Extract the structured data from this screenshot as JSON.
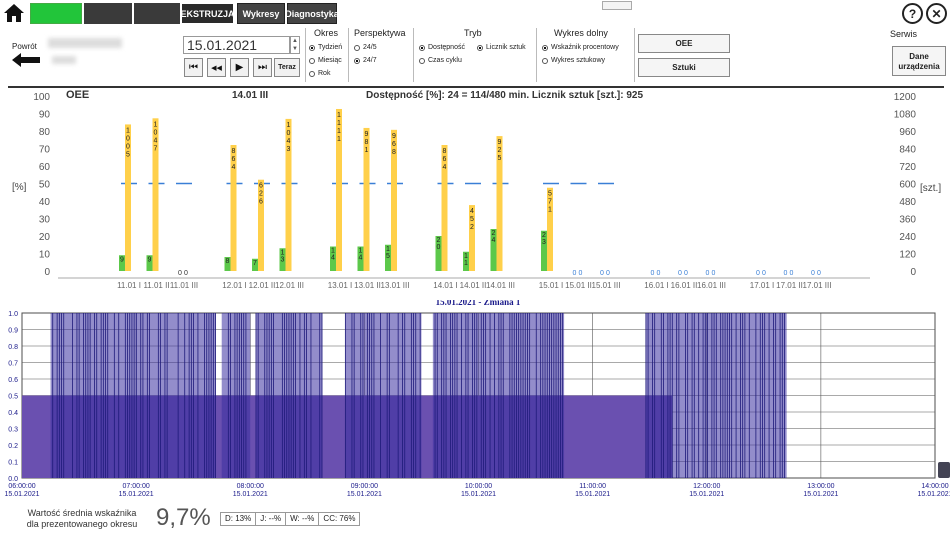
{
  "topbar": {
    "tabs": [
      "EKSTRUZJA",
      "Wykresy",
      "Diagnostyka"
    ],
    "help_label": "?",
    "close_label": "✕",
    "serwis_label": "Serwis"
  },
  "controls": {
    "powrot_label": "Powrót",
    "date_value": "15.01.2021",
    "teraz_label": "Teraz",
    "nav_glyphs": [
      "⏮",
      "◀◀",
      "▶",
      "⏭"
    ],
    "okres": {
      "title": "Okres",
      "options": [
        "Tydzień",
        "Miesiąc",
        "Rok"
      ],
      "selected": 0
    },
    "perspektywa": {
      "title": "Perspektywa",
      "options": [
        "24/5",
        "24/7"
      ],
      "selected": 1
    },
    "tryb": {
      "title": "Tryb",
      "options": [
        "Dostępność",
        "Licznik sztuk",
        "Czas cyklu"
      ],
      "selected": 0
    },
    "wykres_dolny": {
      "title": "Wykres dolny",
      "options": [
        "Wskaźnik procentowy",
        "Wykres sztukowy"
      ],
      "selected": 0
    },
    "oee_button": "OEE",
    "sztuki_button": "Sztuki",
    "dane_button_line1": "Dane",
    "dane_button_line2": "urządzenia"
  },
  "colors": {
    "bar_yellow": "#ffd04a",
    "bar_green": "#5cc84a",
    "line_blue": "#3a7fd6",
    "signal": "#3b2fa0",
    "fill": "#6a50b0"
  },
  "chart_data": [
    {
      "type": "bar",
      "header_left": "OEE",
      "header_date": "14.01 III",
      "header_text": "Dostępność [%]:   24 = 114/480 min.   Licznik sztuk [szt.]: 925",
      "ylabel_left": "[%]",
      "ylabel_right": "[szt.]",
      "y_ticks_left": [
        "100",
        "90",
        "80",
        "70",
        "60",
        "50",
        "40",
        "30",
        "20",
        "10",
        "0"
      ],
      "y_ticks_right": [
        "1200",
        "1080",
        "960",
        "840",
        "720",
        "600",
        "480",
        "360",
        "240",
        "120",
        "0"
      ],
      "ylim_left": [
        0,
        100
      ],
      "ylim_right": [
        0,
        1200
      ],
      "categories": [
        "11.01 I",
        "11.01 II",
        "11.01 III",
        "12.01 I",
        "12.01 II",
        "12.01 III",
        "13.01 I",
        "13.01 II",
        "13.01 III",
        "14.01 I",
        "14.01 II",
        "14.01 III",
        "15.01 I",
        "15.01 II",
        "15.01 III",
        "16.01 I",
        "16.01 II",
        "16.01 III",
        "17.01 I",
        "17.01 II",
        "17.01 III"
      ],
      "series": [
        {
          "name": "Dostępność",
          "values": [
            9,
            9,
            0,
            8,
            7,
            13,
            14,
            14,
            15,
            20,
            11,
            24,
            23,
            0,
            0,
            0,
            0,
            0,
            0,
            0,
            0
          ]
        },
        {
          "name": "Licznik sztuk",
          "values": [
            1005,
            1047,
            0,
            864,
            626,
            1043,
            1111,
            981,
            968,
            864,
            452,
            925,
            571,
            0,
            0,
            0,
            0,
            0,
            0,
            0,
            0
          ]
        }
      ],
      "ref_line": 50
    },
    {
      "type": "area",
      "title": "15.01.2021 - Zmiana 1",
      "y_ticks": [
        "1.0",
        "0.9",
        "0.8",
        "0.7",
        "0.6",
        "0.5",
        "0.4",
        "0.3",
        "0.2",
        "0.1",
        "0.0"
      ],
      "ylim": [
        0,
        1
      ],
      "x_ticks": [
        {
          "time": "06:00:00",
          "date": "15.01.2021"
        },
        {
          "time": "07:00:00",
          "date": "15.01.2021"
        },
        {
          "time": "08:00:00",
          "date": "15.01.2021"
        },
        {
          "time": "09:00:00",
          "date": "15.01.2021"
        },
        {
          "time": "10:00:00",
          "date": "15.01.2021"
        },
        {
          "time": "11:00:00",
          "date": "15.01.2021"
        },
        {
          "time": "12:00:00",
          "date": "15.01.2021"
        },
        {
          "time": "13:00:00",
          "date": "15.01.2021"
        },
        {
          "time": "14:00:00",
          "date": "15.01.2021"
        }
      ],
      "running_periods": [
        [
          "06:15",
          "07:42"
        ],
        [
          "07:45",
          "08:00"
        ],
        [
          "08:03",
          "08:38"
        ],
        [
          "08:50",
          "09:30"
        ],
        [
          "09:36",
          "10:45"
        ],
        [
          "11:28",
          "12:42"
        ]
      ],
      "average_level": 0.5,
      "average_range": [
        "06:00",
        "11:42"
      ]
    }
  ],
  "footer": {
    "label_line1": "Wartość średnia wskaźnika",
    "label_line2": "dla prezentowanego okresu",
    "avg_value": "9,7%",
    "stats": [
      "D:  13%",
      "J:     --%",
      "W:     --%",
      "CC:  76%"
    ]
  }
}
